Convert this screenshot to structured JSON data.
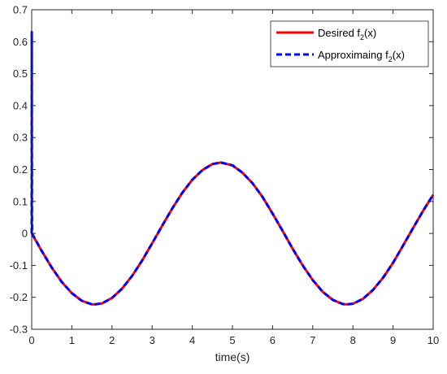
{
  "chart_data": {
    "type": "line",
    "xlabel": "time(s)",
    "ylabel": "",
    "title": "",
    "xlim": [
      0,
      10
    ],
    "ylim": [
      -0.3,
      0.7
    ],
    "xticks": [
      0,
      1,
      2,
      3,
      4,
      5,
      6,
      7,
      8,
      9,
      10
    ],
    "yticks": [
      -0.3,
      -0.2,
      -0.1,
      0,
      0.1,
      0.2,
      0.3,
      0.4,
      0.5,
      0.6,
      0.7
    ],
    "xtick_labels": [
      "0",
      "1",
      "2",
      "3",
      "4",
      "5",
      "6",
      "7",
      "8",
      "9",
      "10"
    ],
    "ytick_labels": [
      "-0.3",
      "-0.2",
      "-0.1",
      "0",
      "0.1",
      "0.2",
      "0.3",
      "0.4",
      "0.5",
      "0.6",
      "0.7"
    ],
    "grid": false,
    "legend_position": "top-right",
    "series": [
      {
        "name": "Desired f2(x)",
        "legend_main": "Desired f",
        "legend_sub": "2",
        "legend_tail": "(x)",
        "color": "#ff0000",
        "style": "solid",
        "x": [
          0,
          0.25,
          0.5,
          0.75,
          1.0,
          1.25,
          1.5,
          1.57,
          1.75,
          2.0,
          2.25,
          2.5,
          2.75,
          3.0,
          3.25,
          3.5,
          3.75,
          4.0,
          4.25,
          4.5,
          4.71,
          5.0,
          5.25,
          5.5,
          5.75,
          6.0,
          6.25,
          6.5,
          6.75,
          7.0,
          7.25,
          7.5,
          7.75,
          7.85,
          8.0,
          8.25,
          8.5,
          8.75,
          9.0,
          9.25,
          9.5,
          9.75,
          10.0
        ],
        "y": [
          0,
          -0.055,
          -0.107,
          -0.152,
          -0.187,
          -0.211,
          -0.222,
          -0.222,
          -0.219,
          -0.202,
          -0.173,
          -0.133,
          -0.085,
          -0.031,
          0.024,
          0.078,
          0.127,
          0.168,
          0.198,
          0.217,
          0.222,
          0.213,
          0.19,
          0.157,
          0.114,
          0.062,
          0.008,
          -0.048,
          -0.1,
          -0.146,
          -0.183,
          -0.208,
          -0.221,
          -0.222,
          -0.22,
          -0.205,
          -0.177,
          -0.139,
          -0.092,
          -0.038,
          0.017,
          0.071,
          0.121
        ]
      },
      {
        "name": "Approximaing f2(x)",
        "legend_main": "Approximaing f",
        "legend_sub": "2",
        "legend_tail": "(x)",
        "color": "#0000ff",
        "style": "dashed",
        "x": [
          0,
          0.002,
          0.004,
          0.006,
          0.01,
          0.03,
          0.25,
          0.5,
          0.75,
          1.0,
          1.25,
          1.5,
          1.57,
          1.75,
          2.0,
          2.25,
          2.5,
          2.75,
          3.0,
          3.25,
          3.5,
          3.75,
          4.0,
          4.25,
          4.5,
          4.71,
          5.0,
          5.25,
          5.5,
          5.75,
          6.0,
          6.25,
          6.5,
          6.75,
          7.0,
          7.25,
          7.5,
          7.75,
          7.85,
          8.0,
          8.25,
          8.5,
          8.75,
          9.0,
          9.25,
          9.5,
          9.75,
          10.0
        ],
        "y": [
          0,
          0.63,
          0.3,
          0.05,
          0.0,
          -0.005,
          -0.055,
          -0.107,
          -0.152,
          -0.187,
          -0.211,
          -0.222,
          -0.222,
          -0.219,
          -0.202,
          -0.173,
          -0.133,
          -0.085,
          -0.031,
          0.024,
          0.078,
          0.127,
          0.168,
          0.198,
          0.217,
          0.222,
          0.213,
          0.19,
          0.157,
          0.114,
          0.062,
          0.008,
          -0.048,
          -0.1,
          -0.146,
          -0.183,
          -0.208,
          -0.221,
          -0.222,
          -0.22,
          -0.205,
          -0.177,
          -0.139,
          -0.092,
          -0.038,
          0.017,
          0.071,
          0.121
        ]
      }
    ]
  }
}
